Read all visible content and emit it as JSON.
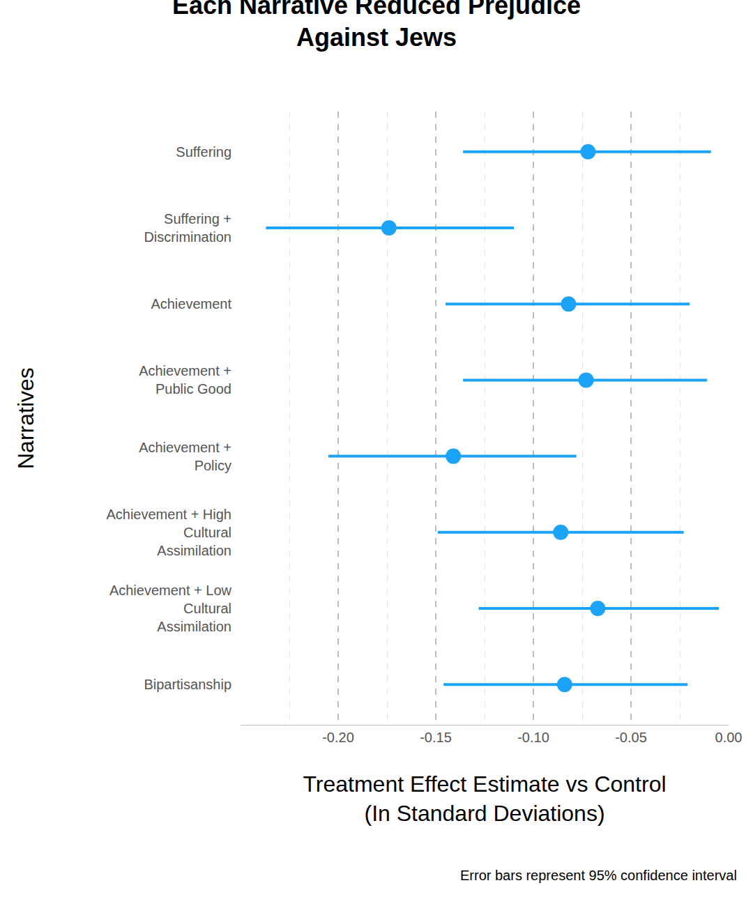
{
  "chart_data": {
    "type": "dot_whisker",
    "title": "Each Narrative Reduced Prejudice\nAgainst Jews",
    "x_label": "Treatment Effect Estimate vs Control\n(In Standard Deviations)",
    "y_label": "Narratives",
    "caption": "Error bars represent 95% confidence interval",
    "orientation": "horizontal",
    "categories": [
      "Suffering",
      "Suffering +\nDiscrimination",
      "Achievement",
      "Achievement +\nPublic Good",
      "Achievement +\nPolicy",
      "Achievement + High\nCultural\nAssimilation",
      "Achievement + Low\nCultural\nAssimilation",
      "Bipartisanship"
    ],
    "values": [
      -0.072,
      -0.174,
      -0.082,
      -0.073,
      -0.141,
      -0.086,
      -0.067,
      -0.084
    ],
    "ci_lower": [
      -0.136,
      -0.237,
      -0.145,
      -0.136,
      -0.205,
      -0.149,
      -0.128,
      -0.146
    ],
    "ci_upper": [
      -0.009,
      -0.11,
      -0.02,
      -0.011,
      -0.078,
      -0.023,
      -0.005,
      -0.021
    ],
    "color": "#1aa3f7",
    "xlim": [
      -0.25,
      0
    ],
    "xticks": [
      {
        "value": -0.2,
        "label": "-0.20"
      },
      {
        "value": -0.15,
        "label": "-0.15"
      },
      {
        "value": -0.1,
        "label": "-0.10"
      },
      {
        "value": -0.05,
        "label": "-0.05"
      },
      {
        "value": 0,
        "label": "0.00"
      }
    ],
    "grid": true
  }
}
